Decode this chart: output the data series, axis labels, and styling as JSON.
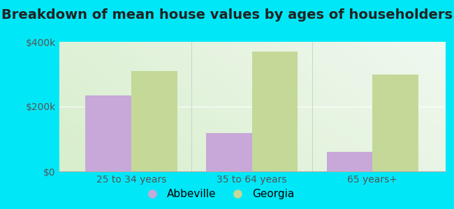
{
  "title": "Breakdown of mean house values by ages of householders",
  "categories": [
    "25 to 34 years",
    "35 to 64 years",
    "65 years+"
  ],
  "abbeville_values": [
    235000,
    118000,
    60000
  ],
  "georgia_values": [
    310000,
    370000,
    300000
  ],
  "abbeville_color": "#c8a8d8",
  "georgia_color": "#c4d898",
  "background_outer": "#00e8f8",
  "ylim": [
    0,
    400000
  ],
  "yticks": [
    0,
    200000,
    400000
  ],
  "ytick_labels": [
    "$0",
    "$200k",
    "$400k"
  ],
  "legend_labels": [
    "Abbeville",
    "Georgia"
  ],
  "title_fontsize": 14,
  "tick_fontsize": 10,
  "legend_fontsize": 11,
  "bar_width": 0.38
}
